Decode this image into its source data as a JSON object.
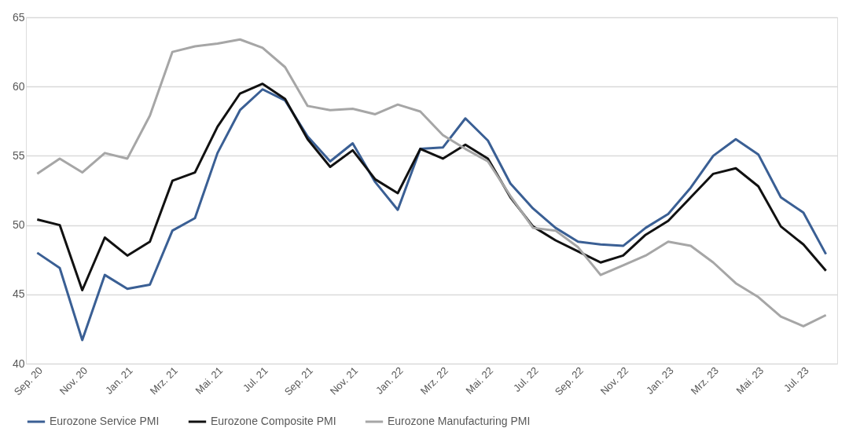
{
  "chart_data": {
    "type": "line",
    "categories": [
      "Sep. 20",
      null,
      "Nov. 20",
      null,
      "Jan. 21",
      null,
      "Mrz. 21",
      null,
      "Mai. 21",
      null,
      "Jul. 21",
      null,
      "Sep. 21",
      null,
      "Nov. 21",
      null,
      "Jan. 22",
      null,
      "Mrz. 22",
      null,
      "Mai. 22",
      null,
      "Jul. 22",
      null,
      "Sep. 22",
      null,
      "Nov. 22",
      null,
      "Jan. 23",
      null,
      "Mrz. 23",
      null,
      "Mai. 23",
      null,
      "Jul. 23",
      null
    ],
    "series": [
      {
        "name": "Eurozone Service PMI",
        "color": "#3a5f94",
        "values": [
          48.0,
          46.9,
          41.7,
          46.4,
          45.4,
          45.7,
          49.6,
          50.5,
          55.2,
          58.3,
          59.8,
          59.0,
          56.4,
          54.6,
          55.9,
          53.1,
          51.1,
          55.5,
          55.6,
          57.7,
          56.1,
          53.0,
          51.2,
          49.8,
          48.8,
          48.6,
          48.5,
          49.8,
          50.8,
          52.7,
          55.0,
          56.2,
          55.1,
          52.0,
          50.9,
          47.9
        ]
      },
      {
        "name": "Eurozone Composite PMI",
        "color": "#111111",
        "values": [
          50.4,
          50.0,
          45.3,
          49.1,
          47.8,
          48.8,
          53.2,
          53.8,
          57.1,
          59.5,
          60.2,
          59.1,
          56.2,
          54.2,
          55.4,
          53.3,
          52.3,
          55.5,
          54.8,
          55.8,
          54.8,
          52.0,
          49.9,
          48.9,
          48.1,
          47.3,
          47.8,
          49.3,
          50.3,
          52.0,
          53.7,
          54.1,
          52.8,
          49.9,
          48.6,
          46.7
        ]
      },
      {
        "name": "Eurozone Manufacturing PMI",
        "color": "#a6a6a6",
        "values": [
          53.7,
          54.8,
          53.8,
          55.2,
          54.8,
          57.9,
          62.5,
          62.9,
          63.1,
          63.4,
          62.8,
          61.4,
          58.6,
          58.3,
          58.4,
          58.0,
          58.7,
          58.2,
          56.5,
          55.5,
          54.6,
          52.1,
          49.8,
          49.6,
          48.4,
          46.4,
          47.1,
          47.8,
          48.8,
          48.5,
          47.3,
          45.8,
          44.8,
          43.4,
          42.7,
          43.5
        ]
      }
    ],
    "ylim": [
      40,
      65
    ],
    "yticks": [
      40,
      45,
      50,
      55,
      60,
      65
    ],
    "grid": "y",
    "legend": "bottom",
    "line_style": "solid",
    "marker": "none"
  }
}
